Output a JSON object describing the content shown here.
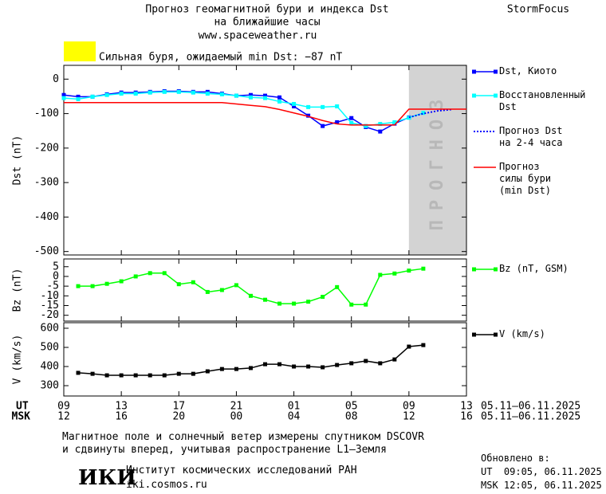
{
  "header": {
    "title_line1": "Прогноз геомагнитной бури и индекса Dst",
    "title_line2": "на ближайшие часы",
    "url": "www.spaceweather.ru",
    "brand": "StormFocus",
    "storm_text": "Сильная буря, ожидаемый min Dst: −87 nT",
    "storm_color": "#ffff00"
  },
  "x_axis": {
    "ut_label": "UT",
    "msk_label": "MSK",
    "date_range": "05.11–06.11.2025",
    "ut": [
      "09",
      null,
      null,
      null,
      "13",
      null,
      null,
      null,
      "17",
      null,
      null,
      null,
      "21",
      null,
      null,
      null,
      "01",
      null,
      null,
      null,
      "05",
      null,
      null,
      null,
      "09",
      null,
      null,
      null,
      "13"
    ],
    "msk": [
      "12",
      null,
      null,
      null,
      "16",
      null,
      null,
      null,
      "20",
      null,
      null,
      null,
      "00",
      null,
      null,
      null,
      "04",
      null,
      null,
      null,
      "08",
      null,
      null,
      null,
      "12",
      null,
      null,
      null,
      "16"
    ]
  },
  "chart_data": [
    {
      "type": "line",
      "y_label": "Dst (nT)",
      "forecast_label": "ПРОГНОЗ",
      "ylim": [
        -510,
        40
      ],
      "yticks": [
        0,
        -100,
        -200,
        -300,
        -400,
        -500
      ],
      "series": [
        {
          "name": "Dst, Киото",
          "color": "#0000ff",
          "style": "marker",
          "values": [
            -46,
            -51,
            -51,
            -44,
            -39,
            -39,
            -37,
            -35,
            -35,
            -37,
            -37,
            -42,
            -48,
            -46,
            -48,
            -53,
            -79,
            -106,
            -136,
            -125,
            -113,
            -139,
            -152,
            -129,
            -111,
            null,
            null,
            null,
            null
          ]
        },
        {
          "name": "Восстановленный Dst",
          "color": "#00ffff",
          "style": "marker",
          "values": [
            -55,
            -58,
            -51,
            -46,
            -42,
            -42,
            -39,
            -37,
            -37,
            -39,
            -42,
            -44,
            -48,
            -53,
            -55,
            -65,
            -72,
            -81,
            -81,
            -79,
            -127,
            -136,
            -130,
            -125,
            -112,
            -98,
            null,
            null,
            null
          ]
        },
        {
          "name": "Прогноз Dst на 2-4 часа",
          "color": "#0000ff",
          "style": "dotted",
          "values": [
            null,
            null,
            null,
            null,
            null,
            null,
            null,
            null,
            null,
            null,
            null,
            null,
            null,
            null,
            null,
            null,
            null,
            null,
            null,
            null,
            null,
            null,
            null,
            null,
            -111,
            -100,
            -92,
            -88,
            null
          ]
        },
        {
          "name": "Прогноз силы бури (min Dst)",
          "color": "#ff0000",
          "style": "plain",
          "values": [
            -68,
            -68,
            -68,
            -68,
            -68,
            -68,
            -68,
            -68,
            -68,
            -68,
            -68,
            -68,
            -72,
            -76,
            -80,
            -88,
            -98,
            -108,
            -120,
            -130,
            -133,
            -133,
            -133,
            -133,
            -87,
            -87,
            -87,
            -87,
            -87
          ]
        }
      ]
    },
    {
      "type": "line",
      "y_label": "Bz (nT)",
      "ylim": [
        -23,
        9
      ],
      "yticks": [
        5,
        0,
        -5,
        -10,
        -15,
        -20
      ],
      "series": [
        {
          "name": "Bz (nT, GSM)",
          "color": "#00ff00",
          "style": "marker",
          "values": [
            null,
            -5,
            -5,
            -3.8,
            -2.5,
            0,
            1.7,
            1.7,
            -4,
            -3,
            -8,
            -7,
            -4.5,
            -10,
            -12,
            -14,
            -14,
            -13,
            -10.5,
            -5.5,
            -14.5,
            -14.5,
            0.8,
            1.5,
            3,
            4,
            null,
            null,
            null
          ]
        }
      ]
    },
    {
      "type": "line",
      "y_label": "V (km/s)",
      "ylim": [
        246,
        629
      ],
      "yticks": [
        300,
        400,
        500,
        600
      ],
      "series": [
        {
          "name": "V (km/s)",
          "color": "#000000",
          "style": "marker",
          "values": [
            null,
            367,
            362,
            354,
            354,
            354,
            354,
            354,
            362,
            362,
            375,
            387,
            387,
            392,
            412,
            412,
            400,
            400,
            396,
            408,
            417,
            429,
            417,
            437,
            504,
            512,
            null,
            null,
            null
          ]
        }
      ]
    }
  ],
  "footer": {
    "note_line1": "Магнитное поле и солнечный ветер измерены спутником DSCOVR",
    "note_line2": "и сдвинуты вперед, учитывая распространение L1–Земля",
    "logo": "ИКИ",
    "institute": "Институт космических исследований РАН",
    "site": "iki.cosmos.ru",
    "updated": "Обновлено в:",
    "updated_ut": "UT  09:05, 06.11.2025",
    "updated_msk": "MSK 12:05, 06.11.2025"
  }
}
